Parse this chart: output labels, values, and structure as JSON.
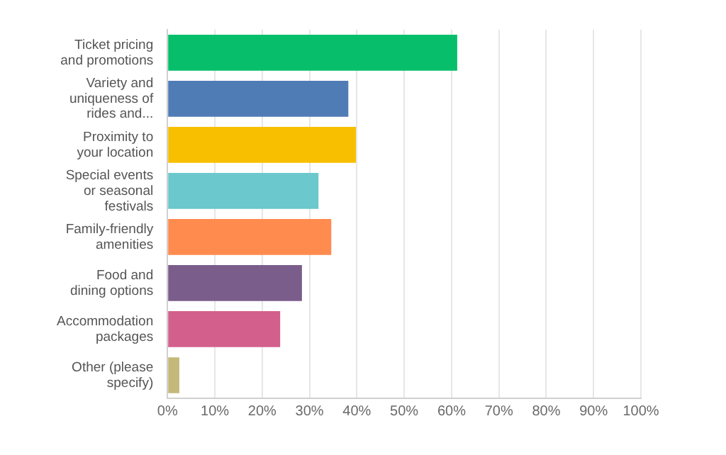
{
  "chart_data": {
    "type": "bar",
    "orientation": "horizontal",
    "categories": [
      "Ticket pricing and promotions",
      "Variety and uniqueness of rides and...",
      "Proximity to your location",
      "Special events or seasonal festivals",
      "Family-friendly amenities",
      "Food and dining options",
      "Accommodation packages",
      "Other (please specify)"
    ],
    "values": [
      61.2,
      38.2,
      39.8,
      31.9,
      34.6,
      28.4,
      23.8,
      2.5
    ],
    "colors": [
      "#07bf6b",
      "#507cb6",
      "#f8bf00",
      "#6bc8cd",
      "#ff8b4f",
      "#7b5d8c",
      "#d35f8c",
      "#c4b97a"
    ],
    "xlim": [
      0,
      100
    ],
    "xticks": [
      {
        "value": 0,
        "label": "0%"
      },
      {
        "value": 10,
        "label": "10%"
      },
      {
        "value": 20,
        "label": "20%"
      },
      {
        "value": 30,
        "label": "30%"
      },
      {
        "value": 40,
        "label": "40%"
      },
      {
        "value": 50,
        "label": "50%"
      },
      {
        "value": 60,
        "label": "60%"
      },
      {
        "value": 70,
        "label": "70%"
      },
      {
        "value": 80,
        "label": "80%"
      },
      {
        "value": 90,
        "label": "90%"
      },
      {
        "value": 100,
        "label": "100%"
      }
    ],
    "grid": "x",
    "legend": false
  }
}
